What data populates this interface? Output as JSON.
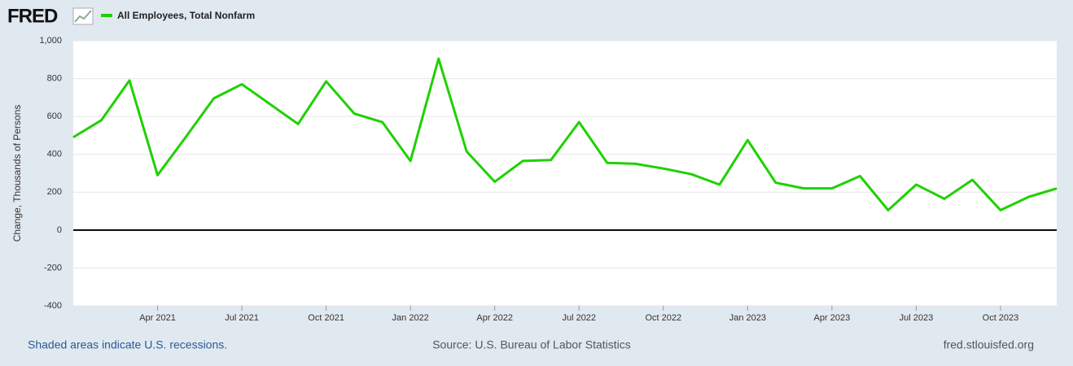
{
  "logo": "FRED",
  "chart_data": {
    "type": "line",
    "x": [
      "Jan 2021",
      "Feb 2021",
      "Mar 2021",
      "Apr 2021",
      "May 2021",
      "Jun 2021",
      "Jul 2021",
      "Aug 2021",
      "Sep 2021",
      "Oct 2021",
      "Nov 2021",
      "Dec 2021",
      "Jan 2022",
      "Feb 2022",
      "Mar 2022",
      "Apr 2022",
      "May 2022",
      "Jun 2022",
      "Jul 2022",
      "Aug 2022",
      "Sep 2022",
      "Oct 2022",
      "Nov 2022",
      "Dec 2022",
      "Jan 2023",
      "Feb 2023",
      "Mar 2023",
      "Apr 2023",
      "May 2023",
      "Jun 2023",
      "Jul 2023",
      "Aug 2023",
      "Sep 2023",
      "Oct 2023",
      "Nov 2023",
      "Dec 2023"
    ],
    "series": [
      {
        "name": "All Employees, Total Nonfarm",
        "color": "#1fd100",
        "values": [
          490,
          580,
          790,
          290,
          490,
          695,
          770,
          665,
          560,
          785,
          615,
          570,
          365,
          905,
          415,
          255,
          365,
          370,
          570,
          355,
          350,
          325,
          295,
          240,
          475,
          250,
          220,
          220,
          285,
          105,
          240,
          165,
          265,
          105,
          175,
          220
        ]
      }
    ],
    "y_label": "Change, Thousands of Persons",
    "ylim": [
      -400,
      1000
    ],
    "yticks": [
      -400,
      -200,
      0,
      200,
      400,
      600,
      800,
      {
        "value": 1000,
        "label": "1,000"
      }
    ],
    "xticks": [
      "Apr 2021",
      "Jul 2021",
      "Oct 2021",
      "Jan 2022",
      "Apr 2022",
      "Jul 2022",
      "Oct 2022",
      "Jan 2023",
      "Apr 2023",
      "Jul 2023",
      "Oct 2023"
    ],
    "grid": true,
    "note": "Shaded areas indicate U.S. recessions.",
    "source": "Source: U.S. Bureau of Labor Statistics",
    "site": "fred.stlouisfed.org"
  }
}
